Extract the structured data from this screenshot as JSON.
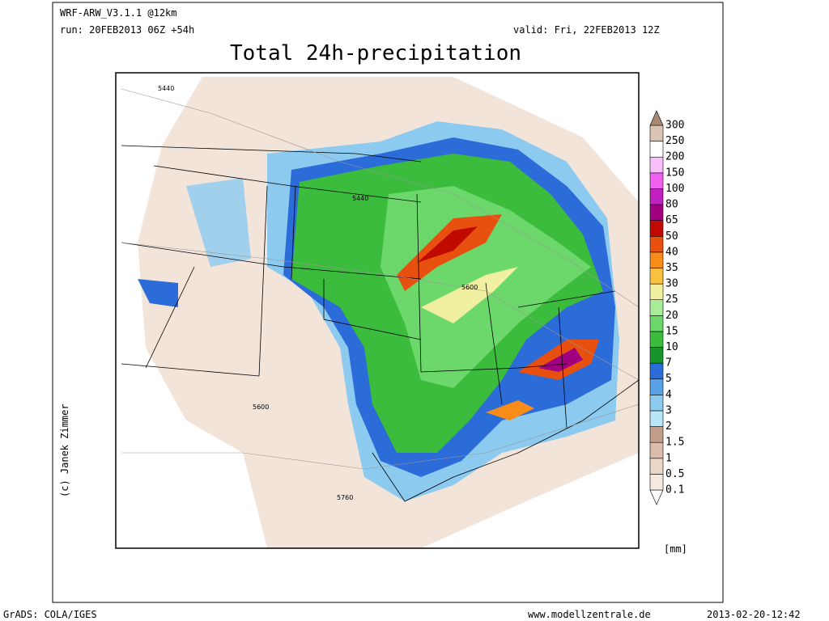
{
  "header": {
    "model": "WRF-ARW_V3.1.1 @12km",
    "run": "run: 20FEB2013 06Z +54h",
    "valid": "valid: Fri, 22FEB2013 12Z",
    "title": "Total 24h-precipitation"
  },
  "map": {
    "contour_labels": [
      "5440",
      "5440",
      "5600",
      "5600",
      "5760"
    ],
    "credit": "(c) Janek Zimmer"
  },
  "colorbar": {
    "unit": "[mm]",
    "levels": [
      0.1,
      0.5,
      1,
      1.5,
      2,
      3,
      4,
      5,
      7,
      10,
      15,
      20,
      25,
      30,
      35,
      40,
      50,
      65,
      80,
      100,
      150,
      200,
      250,
      300
    ],
    "colors": [
      "#ffffff",
      "#f6e9e0",
      "#ecd6c8",
      "#dcbcaa",
      "#c49e8c",
      "#b8e6f6",
      "#8ccaf0",
      "#5aa2e8",
      "#2c6cd8",
      "#16962a",
      "#3cbc3c",
      "#6cd86c",
      "#a8ec98",
      "#f0f0a0",
      "#fcc040",
      "#f88c18",
      "#e85010",
      "#c00a00",
      "#a00080",
      "#c020c0",
      "#f060f0",
      "#f8c0f8",
      "#ffffff",
      "#dcc4b4",
      "#a88870"
    ]
  },
  "footer": {
    "left": "GrADS: COLA/IGES",
    "center": "www.modellzentrale.de",
    "right": "2013-02-20-12:42"
  }
}
